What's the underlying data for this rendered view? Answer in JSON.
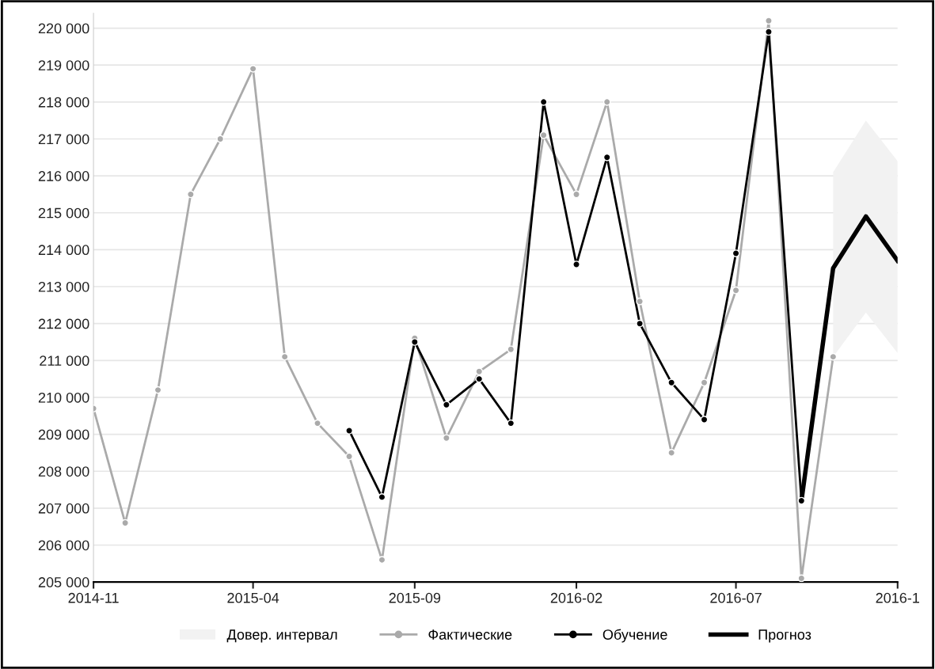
{
  "chart_data": {
    "type": "line",
    "x": [
      "2014-11",
      "2014-12",
      "2015-01",
      "2015-02",
      "2015-03",
      "2015-04",
      "2015-05",
      "2015-06",
      "2015-07",
      "2015-08",
      "2015-09",
      "2015-10",
      "2015-11",
      "2015-12",
      "2016-01",
      "2016-02",
      "2016-03",
      "2016-04",
      "2016-05",
      "2016-06",
      "2016-07",
      "2016-08",
      "2016-09",
      "2016-10"
    ],
    "series": [
      {
        "name": "Фактические",
        "color": "#aaaaaa",
        "marker": "circle",
        "values": [
          209700,
          206600,
          210200,
          215500,
          217000,
          218900,
          211100,
          209300,
          208400,
          205600,
          211600,
          208900,
          210700,
          211300,
          217100,
          215500,
          218000,
          212600,
          208500,
          210400,
          212900,
          220200,
          205100,
          211100
        ]
      },
      {
        "name": "Обучение",
        "color": "#000000",
        "marker": "circle",
        "x": [
          "2015-07",
          "2015-08",
          "2015-09",
          "2015-10",
          "2015-11",
          "2015-12",
          "2016-01",
          "2016-02",
          "2016-03",
          "2016-04",
          "2016-05",
          "2016-06",
          "2016-07",
          "2016-08",
          "2016-09"
        ],
        "values": [
          209100,
          207300,
          211500,
          209800,
          210500,
          209300,
          218000,
          213600,
          216500,
          212000,
          210400,
          209400,
          213900,
          219900,
          207200
        ]
      },
      {
        "name": "Прогноз",
        "color": "#000000",
        "marker": "none",
        "x": [
          "2016-09",
          "2016-10",
          "2016-11",
          "2016-12"
        ],
        "values": [
          207200,
          213500,
          214900,
          213700
        ],
        "lower": [
          null,
          211100,
          212300,
          211200
        ],
        "upper": [
          null,
          216100,
          217500,
          216400
        ]
      }
    ],
    "xlim": [
      "2014-11",
      "2016-12"
    ],
    "xticks": [
      "2014-11",
      "2015-04",
      "2015-09",
      "2016-02",
      "2016-07",
      {
        "value": "2016-12",
        "label": "2016-1"
      }
    ],
    "ylim": [
      205000,
      220400
    ],
    "yticks": [
      {
        "value": 205000,
        "label": "205 000"
      },
      {
        "value": 206000,
        "label": "206 000"
      },
      {
        "value": 207000,
        "label": "207 000"
      },
      {
        "value": 208000,
        "label": "208 000"
      },
      {
        "value": 209000,
        "label": "209 000"
      },
      {
        "value": 210000,
        "label": "210 000"
      },
      {
        "value": 211000,
        "label": "211 000"
      },
      {
        "value": 212000,
        "label": "212 000"
      },
      {
        "value": 213000,
        "label": "213 000"
      },
      {
        "value": 214000,
        "label": "214 000"
      },
      {
        "value": 215000,
        "label": "215 000"
      },
      {
        "value": 216000,
        "label": "216 000"
      },
      {
        "value": 217000,
        "label": "217 000"
      },
      {
        "value": 218000,
        "label": "218 000"
      },
      {
        "value": 219000,
        "label": "219 000"
      },
      {
        "value": 220000,
        "label": "220 000"
      }
    ],
    "annotations": [
      "Довер. интервал"
    ],
    "grid": "y",
    "legend": "bottom"
  }
}
